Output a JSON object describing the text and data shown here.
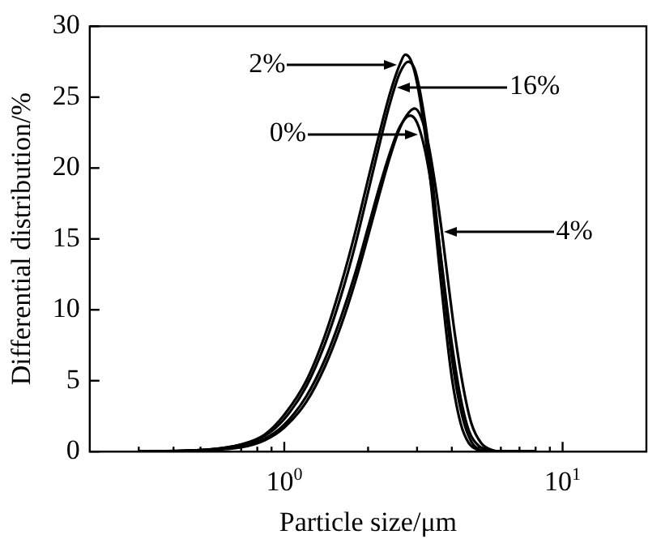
{
  "chart_data": {
    "type": "line",
    "xlabel": "Particle size/μm",
    "ylabel": "Differential distribution/%",
    "log": "x",
    "marker": "none",
    "xlim": [
      0.2,
      20
    ],
    "ylim": [
      0,
      30
    ],
    "xticks": [
      {
        "value": 0.3,
        "label": null
      },
      {
        "value": 0.4,
        "label": null
      },
      {
        "value": 0.5,
        "label": null
      },
      {
        "value": 0.6,
        "label": null
      },
      {
        "value": 0.7,
        "label": null
      },
      {
        "value": 0.8,
        "label": null
      },
      {
        "value": 0.9,
        "label": null
      },
      {
        "value": 1,
        "label": "10$^{0}$"
      },
      {
        "value": 2,
        "label": null
      },
      {
        "value": 3,
        "label": null
      },
      {
        "value": 4,
        "label": null
      },
      {
        "value": 5,
        "label": null
      },
      {
        "value": 6,
        "label": null
      },
      {
        "value": 7,
        "label": null
      },
      {
        "value": 8,
        "label": null
      },
      {
        "value": 9,
        "label": null
      },
      {
        "value": 10,
        "label": "10$^{1}$"
      }
    ],
    "yticks": [
      0,
      5,
      10,
      15,
      20,
      25,
      30
    ],
    "series": [
      {
        "color": "#000000",
        "x": [
          0.3,
          0.5,
          0.7,
          0.85,
          1.0,
          1.2,
          1.4,
          1.6,
          1.8,
          2.0,
          2.2,
          2.4,
          2.6,
          2.72,
          2.85,
          3.0,
          3.2,
          3.4,
          3.6,
          3.8,
          4.0,
          4.3,
          4.6,
          5.0,
          5.5,
          8
        ],
        "values": [
          0,
          0.1,
          0.5,
          1.2,
          2.6,
          5.0,
          8.2,
          11.8,
          15.5,
          19.2,
          22.5,
          25.3,
          27.3,
          28.0,
          27.6,
          26.0,
          22.5,
          18.0,
          13.2,
          8.8,
          5.2,
          2.0,
          0.6,
          0.1,
          0,
          0
        ]
      },
      {
        "color": "#000000",
        "x": [
          0.3,
          0.5,
          0.7,
          0.85,
          1.0,
          1.2,
          1.4,
          1.6,
          1.8,
          2.0,
          2.2,
          2.4,
          2.6,
          2.79,
          2.95,
          3.1,
          3.3,
          3.5,
          3.7,
          3.9,
          4.1,
          4.4,
          4.7,
          5.1,
          5.7,
          8
        ],
        "values": [
          0,
          0.1,
          0.5,
          1.1,
          2.3,
          4.6,
          7.6,
          11.0,
          14.6,
          18.3,
          21.7,
          24.6,
          26.7,
          27.5,
          26.9,
          25.0,
          21.5,
          17.0,
          12.5,
          8.4,
          5.2,
          2.2,
          0.7,
          0.1,
          0,
          0
        ]
      },
      {
        "color": "#000000",
        "x": [
          0.3,
          0.5,
          0.7,
          0.85,
          1.0,
          1.2,
          1.4,
          1.6,
          1.8,
          2.0,
          2.2,
          2.4,
          2.6,
          2.83,
          3.0,
          3.2,
          3.4,
          3.6,
          3.8,
          4.0,
          4.3,
          4.6,
          5.0,
          5.5,
          6,
          8
        ],
        "values": [
          0,
          0.1,
          0.4,
          0.9,
          1.9,
          3.9,
          6.5,
          9.5,
          12.6,
          15.8,
          18.7,
          21.1,
          22.9,
          23.7,
          23.2,
          21.3,
          18.4,
          14.8,
          11.0,
          7.6,
          3.8,
          1.5,
          0.4,
          0.1,
          0,
          0
        ]
      },
      {
        "color": "#000000",
        "x": [
          0.3,
          0.5,
          0.7,
          0.85,
          1.0,
          1.2,
          1.4,
          1.6,
          1.8,
          2.0,
          2.2,
          2.4,
          2.6,
          2.8,
          2.94,
          3.1,
          3.3,
          3.5,
          3.7,
          3.9,
          4.1,
          4.4,
          4.7,
          5.1,
          5.6,
          6.2,
          8
        ],
        "values": [
          0,
          0.1,
          0.3,
          0.8,
          1.7,
          3.5,
          6.0,
          8.9,
          12.0,
          15.2,
          18.2,
          20.8,
          22.8,
          23.9,
          24.2,
          23.6,
          21.6,
          18.6,
          15.2,
          11.6,
          8.3,
          4.5,
          2.0,
          0.6,
          0.1,
          0,
          0
        ]
      }
    ],
    "annotations": [
      "2%",
      "16%",
      "0%",
      "4%"
    ]
  }
}
